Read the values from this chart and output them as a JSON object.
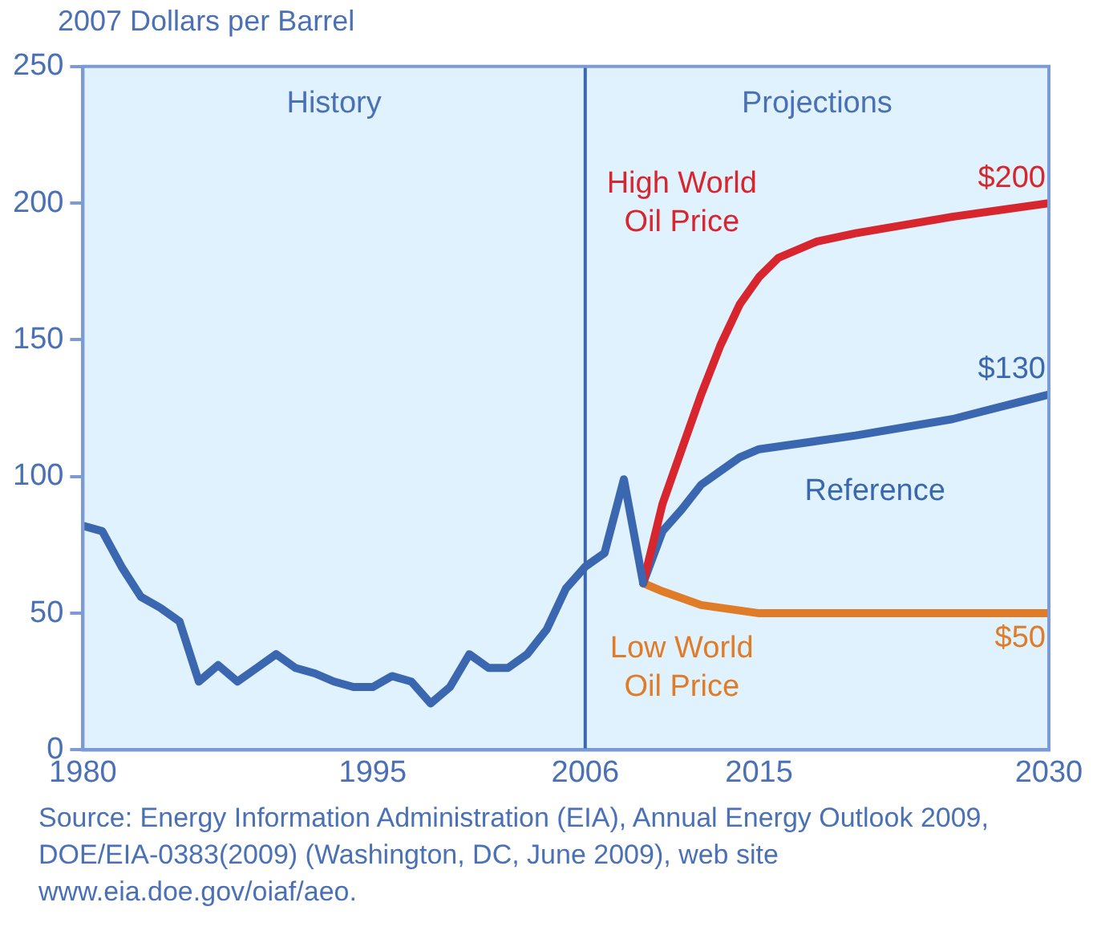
{
  "chart_data": {
    "type": "line",
    "ylabel": "2007 Dollars per Barrel",
    "xlim": [
      1980,
      2030
    ],
    "xticks": [
      1980,
      1995,
      2006,
      2015,
      2030
    ],
    "ylim": [
      0,
      250
    ],
    "yticks": [
      0,
      50,
      100,
      150,
      200,
      250
    ],
    "grid": false,
    "legend": false,
    "marker": "none",
    "bands": [
      {
        "axis": "x",
        "from": 1980,
        "to": 2006,
        "label": "History",
        "color": "#e0f2fd"
      },
      {
        "axis": "x",
        "from": 2006,
        "to": 2030,
        "label": "Projections",
        "color": "#e0f2fd"
      }
    ],
    "ref_lines": [
      {
        "axis": "x",
        "value": 2006,
        "color": "#3a67b0"
      }
    ],
    "series": [
      {
        "color": "#3a67b0",
        "x": [
          1980,
          1981,
          1982,
          1983,
          1984,
          1985,
          1986,
          1987,
          1988,
          1989,
          1990,
          1991,
          1992,
          1993,
          1994,
          1995,
          1996,
          1997,
          1998,
          1999,
          2000,
          2001,
          2002,
          2003,
          2004,
          2005,
          2006,
          2007,
          2008,
          2009
        ],
        "values": [
          82,
          80,
          67,
          56,
          52,
          47,
          25,
          31,
          25,
          30,
          35,
          30,
          28,
          25,
          23,
          23,
          27,
          25,
          17,
          23,
          35,
          30,
          30,
          35,
          44,
          59,
          67,
          72,
          99,
          61
        ]
      },
      {
        "name": "High World Oil Price",
        "color": "#d7262e",
        "x": [
          2009,
          2010,
          2011,
          2012,
          2013,
          2014,
          2015,
          2016,
          2018,
          2020,
          2025,
          2030
        ],
        "values": [
          61,
          90,
          110,
          130,
          148,
          163,
          173,
          180,
          186,
          189,
          195,
          200
        ],
        "value_labels": [
          null,
          null,
          null,
          null,
          null,
          null,
          null,
          null,
          null,
          null,
          null,
          "$200"
        ]
      },
      {
        "name": "Reference",
        "color": "#3a67b0",
        "x": [
          2009,
          2010,
          2011,
          2012,
          2013,
          2014,
          2015,
          2020,
          2025,
          2030
        ],
        "values": [
          61,
          80,
          88,
          97,
          102,
          107,
          110,
          115,
          121,
          130
        ],
        "value_labels": [
          null,
          null,
          null,
          null,
          null,
          null,
          null,
          null,
          null,
          "$130"
        ]
      },
      {
        "name": "Low World Oil Price",
        "color": "#e07b28",
        "x": [
          2009,
          2010,
          2012,
          2015,
          2030
        ],
        "values": [
          61,
          58,
          53,
          50,
          50
        ],
        "value_labels": [
          null,
          null,
          null,
          null,
          "$50"
        ]
      }
    ],
    "annotations": [
      "Source: Energy Information Administration (EIA), Annual Energy Outlook 2009, DOE/EIA-0383(2009) (Washington, DC, June 2009), web site www.eia.doe.gov/oiaf/aeo."
    ]
  }
}
